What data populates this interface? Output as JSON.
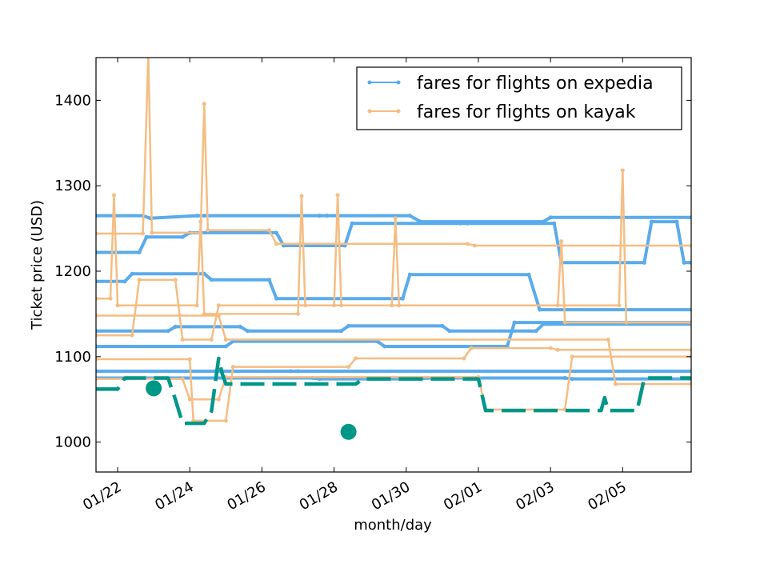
{
  "chart_data": {
    "type": "line",
    "title": "",
    "xlabel": "month/day",
    "ylabel": "Ticket price (USD)",
    "xlim": [
      0,
      16.5
    ],
    "ylim": [
      965,
      1450
    ],
    "x_ticks": [
      {
        "x": 0.6,
        "label": "01/22"
      },
      {
        "x": 2.6,
        "label": "01/24"
      },
      {
        "x": 4.6,
        "label": "01/26"
      },
      {
        "x": 6.6,
        "label": "01/28"
      },
      {
        "x": 8.6,
        "label": "01/30"
      },
      {
        "x": 10.6,
        "label": "02/01"
      },
      {
        "x": 12.6,
        "label": "02/03"
      },
      {
        "x": 14.6,
        "label": "02/05"
      }
    ],
    "y_ticks": [
      {
        "y": 1000,
        "label": "1000"
      },
      {
        "y": 1100,
        "label": "1100"
      },
      {
        "y": 1200,
        "label": "1200"
      },
      {
        "y": 1300,
        "label": "1300"
      },
      {
        "y": 1400,
        "label": "1400"
      }
    ],
    "legend": {
      "position": "top-right",
      "entries": [
        {
          "label": "fares for flights on expedia",
          "color": "#5aabeb"
        },
        {
          "label": "fares for flights on kayak",
          "color": "#f5bd83"
        }
      ]
    },
    "series": [
      {
        "name": "expedia-1",
        "source": "expedia",
        "color": "#5aabeb",
        "x": [
          0,
          1.3,
          1.5,
          2.8,
          3.0,
          6.2,
          6.4,
          8.7,
          9.0,
          12.4,
          12.6,
          16.5
        ],
        "y": [
          1265,
          1265,
          1262,
          1265,
          1265,
          1265,
          1265,
          1265,
          1258,
          1258,
          1263,
          1263
        ]
      },
      {
        "name": "expedia-2",
        "source": "expedia",
        "color": "#5aabeb",
        "x": [
          0,
          1.2,
          1.4,
          2.4,
          2.6,
          5.0,
          5.2,
          6.9,
          7.1,
          10.1,
          10.3,
          12.7,
          12.9,
          15.2,
          15.4,
          16.1,
          16.3,
          16.5
        ],
        "y": [
          1222,
          1222,
          1240,
          1240,
          1245,
          1245,
          1230,
          1230,
          1256,
          1256,
          1256,
          1256,
          1210,
          1210,
          1258,
          1258,
          1210,
          1210
        ]
      },
      {
        "name": "expedia-3",
        "source": "expedia",
        "color": "#5aabeb",
        "x": [
          0,
          0.8,
          1.0,
          3.0,
          3.2,
          4.8,
          5.0,
          8.5,
          8.7,
          12.0,
          12.3,
          16.5
        ],
        "y": [
          1188,
          1188,
          1197,
          1197,
          1190,
          1190,
          1168,
          1168,
          1196,
          1196,
          1155,
          1155
        ]
      },
      {
        "name": "expedia-4",
        "source": "expedia",
        "color": "#5aabeb",
        "x": [
          0,
          2.0,
          2.2,
          4.0,
          4.2,
          6.8,
          7.0,
          9.6,
          9.8,
          12.2,
          12.4,
          16.5
        ],
        "y": [
          1130,
          1130,
          1135,
          1135,
          1130,
          1130,
          1136,
          1136,
          1130,
          1130,
          1138,
          1138
        ]
      },
      {
        "name": "expedia-5",
        "source": "expedia",
        "color": "#5aabeb",
        "x": [
          0,
          3.6,
          3.8,
          7.8,
          8.0,
          11.4,
          11.6,
          16.5
        ],
        "y": [
          1112,
          1112,
          1118,
          1118,
          1112,
          1112,
          1140,
          1140
        ]
      },
      {
        "name": "expedia-6",
        "source": "expedia",
        "color": "#5aabeb",
        "x": [
          0,
          5.4,
          5.6,
          16.5
        ],
        "y": [
          1083,
          1083,
          1083,
          1083
        ]
      },
      {
        "name": "expedia-7",
        "source": "expedia",
        "color": "#5aabeb",
        "x": [
          0,
          6.0,
          6.2,
          9.0,
          9.2,
          13.0,
          13.2,
          16.5
        ],
        "y": [
          1075,
          1075,
          1074,
          1074,
          1075,
          1075,
          1074,
          1074
        ]
      },
      {
        "name": "kayak-1",
        "source": "kayak",
        "color": "#f5bd83",
        "x": [
          0,
          1.3,
          1.45,
          1.55,
          2.9,
          3.0,
          3.1,
          4.8,
          5.0,
          10.3,
          10.5,
          16.5
        ],
        "y": [
          1244,
          1244,
          1455,
          1245,
          1245,
          1396,
          1248,
          1248,
          1232,
          1232,
          1230,
          1230
        ]
      },
      {
        "name": "kayak-2",
        "source": "kayak",
        "color": "#f5bd83",
        "x": [
          0,
          0.4,
          0.5,
          0.6,
          2.8,
          2.9,
          3.0,
          5.6,
          5.7,
          5.8,
          12.8,
          12.9,
          13.0,
          16.5
        ],
        "y": [
          1168,
          1168,
          1289,
          1160,
          1160,
          1258,
          1150,
          1150,
          1288,
          1160,
          1160,
          1235,
          1140,
          1140
        ]
      },
      {
        "name": "kayak-3",
        "source": "kayak",
        "color": "#f5bd83",
        "x": [
          0,
          1.0,
          1.2,
          2.2,
          2.4,
          3.2,
          3.4,
          6.6,
          6.7,
          6.8,
          8.2,
          8.3,
          8.4,
          14.5,
          14.6,
          14.7,
          16.5
        ],
        "y": [
          1125,
          1125,
          1190,
          1190,
          1120,
          1120,
          1160,
          1160,
          1289,
          1160,
          1160,
          1262,
          1160,
          1160,
          1318,
          1140,
          1140
        ]
      },
      {
        "name": "kayak-4",
        "source": "kayak",
        "color": "#f5bd83",
        "x": [
          0,
          2.6,
          2.7,
          3.6,
          3.8,
          7.0,
          7.2,
          10.2,
          10.4,
          12.6,
          12.8,
          16.5
        ],
        "y": [
          1097,
          1097,
          1025,
          1025,
          1088,
          1088,
          1098,
          1098,
          1110,
          1110,
          1108,
          1108
        ]
      },
      {
        "name": "kayak-5",
        "source": "kayak",
        "color": "#f5bd83",
        "x": [
          0,
          2.4,
          2.6,
          3.4,
          3.6,
          10.6,
          10.8,
          13.0,
          13.2,
          16.5
        ],
        "y": [
          1074,
          1074,
          1050,
          1050,
          1076,
          1076,
          1038,
          1038,
          1100,
          1100
        ]
      },
      {
        "name": "kayak-6",
        "source": "kayak",
        "color": "#f5bd83",
        "x": [
          0,
          3.4,
          3.6,
          14.2,
          14.4,
          16.5
        ],
        "y": [
          1148,
          1148,
          1120,
          1120,
          1068,
          1068
        ]
      },
      {
        "name": "min-fare",
        "source": "minimum",
        "color": "#009688",
        "dashed": true,
        "x": [
          0,
          0.6,
          0.8,
          2.0,
          2.1,
          2.2,
          2.4,
          3.0,
          3.2,
          3.4,
          3.5,
          3.6,
          4.5,
          7.2,
          7.4,
          7.6,
          7.8,
          10.6,
          10.8,
          14.0,
          14.1,
          14.2,
          14.6,
          15.0,
          15.2,
          16.5
        ],
        "y": [
          1062,
          1062,
          1075,
          1075,
          1062,
          1050,
          1022,
          1022,
          1036,
          1098,
          1080,
          1068,
          1068,
          1068,
          1074,
          1074,
          1074,
          1074,
          1037,
          1037,
          1052,
          1037,
          1037,
          1037,
          1075,
          1075
        ]
      }
    ],
    "highlight_points": [
      {
        "x": 1.6,
        "y": 1063,
        "color": "#009688"
      },
      {
        "x": 7.0,
        "y": 1012,
        "color": "#009688"
      }
    ]
  }
}
